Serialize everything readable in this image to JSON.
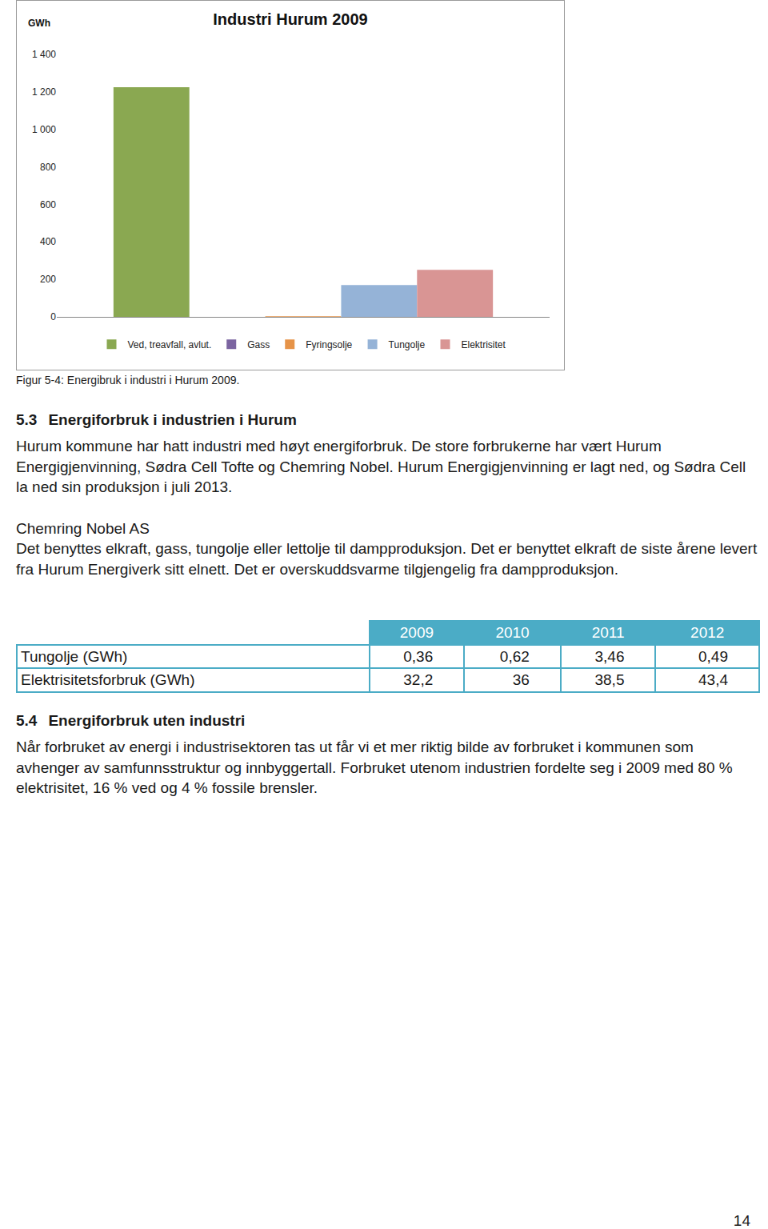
{
  "chart_data": {
    "type": "bar",
    "title": "Industri Hurum 2009",
    "y_label": "GWh",
    "categories": [
      null
    ],
    "series": [
      {
        "name": "Ved, treavfall, avlut.",
        "color": "#8aa851",
        "values": [
          1225
        ]
      },
      {
        "name": "Gass",
        "color": "#7b64a0",
        "values": [
          0
        ]
      },
      {
        "name": "Fyringsolje",
        "color": "#e69348",
        "values": [
          3
        ]
      },
      {
        "name": "Tungolje",
        "color": "#95b3d7",
        "values": [
          170
        ]
      },
      {
        "name": "Elektrisitet",
        "color": "#d99594",
        "values": [
          251
        ]
      }
    ],
    "ylim": [
      0,
      1400
    ],
    "yticks": [
      0,
      200,
      400,
      600,
      800,
      {
        "value": 1000,
        "label": "1 000"
      },
      {
        "value": 1200,
        "label": "1 200"
      },
      {
        "value": 1400,
        "label": "1 400"
      }
    ],
    "grid": false,
    "legend": "bottom",
    "tick_labels": "y"
  },
  "document": {
    "caption": "Figur 5-4: Energibruk i industri i Hurum 2009.",
    "section_1": {
      "number": "5.3",
      "heading": "Energiforbruk i industrien i Hurum",
      "paragraphs": [
        "Hurum kommune har hatt industri med høyt energiforbruk. De store forbrukerne har vært Hurum Energigjenvinning, Sødra Cell Tofte og Chemring Nobel. Hurum Energigjenvinning er lagt ned, og Sødra Cell la ned sin produksjon i juli 2013."
      ]
    },
    "company": {
      "heading": "Chemring Nobel AS",
      "paragraph": "Det benyttes elkraft, gass, tungolje eller lettolje til dampproduksjon. Det er benyttet elkraft de siste årene levert fra Hurum Energiverk sitt elnett. Det er overskuddsvarme tilgjengelig fra dampproduksjon."
    },
    "table": {
      "header": [
        "",
        "2009",
        "2010",
        "2011",
        "2012"
      ],
      "rows": [
        [
          "Tungolje (GWh)",
          "0,36",
          "0,62",
          "3,46",
          "0,49"
        ],
        [
          "Elektrisitetsforbruk (GWh)",
          "32,2",
          "36",
          "38,5",
          "43,4"
        ]
      ]
    },
    "section_2": {
      "number": "5.4",
      "heading": "Energiforbruk uten industri",
      "paragraphs": [
        "Når forbruket av energi i industrisektoren tas ut får vi et mer riktig bilde av forbruket i kommunen som avhenger av samfunnsstruktur og innbyggertall. Forbruket utenom industrien fordelte seg i 2009 med 80 % elektrisitet, 16 % ved og 4 % fossile brensler."
      ]
    },
    "page_number": "14"
  }
}
